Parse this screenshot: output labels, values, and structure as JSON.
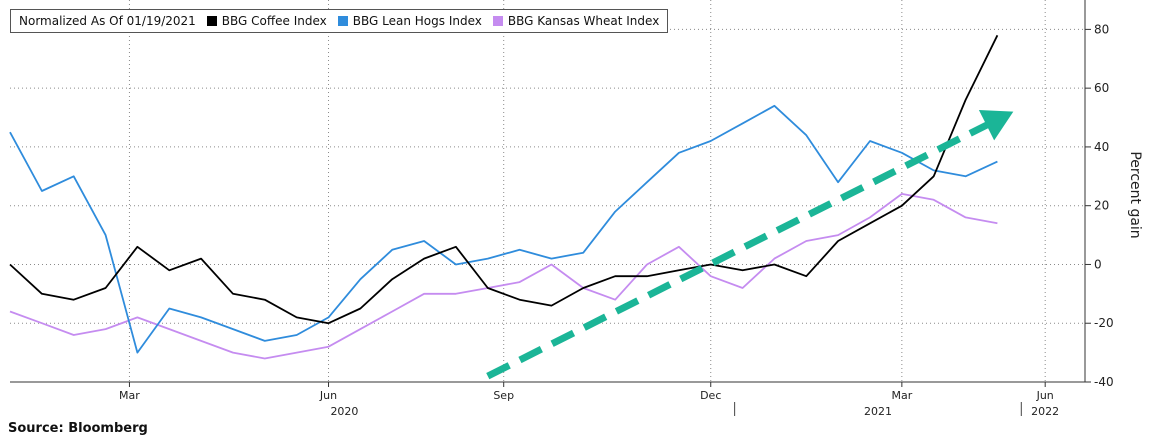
{
  "chart_data": {
    "type": "line",
    "legend": {
      "title": "Normalized As Of 01/19/2021",
      "placement": "top-left"
    },
    "series": [
      {
        "name": "BBG Coffee Index",
        "color": "#000000",
        "x": [
          0,
          4,
          8,
          12,
          16,
          20,
          24,
          28,
          32,
          36,
          40,
          44,
          48,
          52,
          56,
          60,
          64,
          68,
          72,
          76,
          80,
          84,
          88,
          92,
          96,
          100,
          104,
          108,
          112,
          116,
          120,
          124
        ],
        "y": [
          0,
          -10,
          -12,
          -8,
          6,
          -2,
          2,
          -10,
          -12,
          -18,
          -20,
          -15,
          -5,
          2,
          6,
          -8,
          -12,
          -14,
          -8,
          -4,
          -4,
          -2,
          0,
          -2,
          0,
          -4,
          8,
          14,
          20,
          30,
          56,
          78
        ]
      },
      {
        "name": "BBG Lean Hogs Index",
        "color": "#2f8cdc",
        "x": [
          0,
          4,
          8,
          12,
          16,
          20,
          24,
          28,
          32,
          36,
          40,
          44,
          48,
          52,
          56,
          60,
          64,
          68,
          72,
          76,
          80,
          84,
          88,
          92,
          96,
          100,
          104,
          108,
          112,
          116,
          120,
          124
        ],
        "y": [
          45,
          25,
          30,
          10,
          -30,
          -15,
          -18,
          -22,
          -26,
          -24,
          -18,
          -5,
          5,
          8,
          0,
          2,
          5,
          2,
          4,
          18,
          28,
          38,
          42,
          48,
          54,
          44,
          28,
          42,
          38,
          32,
          30,
          35
        ]
      },
      {
        "name": "BBG Kansas Wheat Index",
        "color": "#c58cf0",
        "x": [
          0,
          4,
          8,
          12,
          16,
          20,
          24,
          28,
          32,
          36,
          40,
          44,
          48,
          52,
          56,
          60,
          64,
          68,
          72,
          76,
          80,
          84,
          88,
          92,
          96,
          100,
          104,
          108,
          112,
          116,
          120,
          124
        ],
        "y": [
          -16,
          -20,
          -24,
          -22,
          -18,
          -22,
          -26,
          -30,
          -32,
          -30,
          -28,
          -22,
          -16,
          -10,
          -10,
          -8,
          -6,
          0,
          -8,
          -12,
          0,
          6,
          -4,
          -8,
          2,
          8,
          10,
          16,
          24,
          22,
          16,
          14
        ]
      }
    ],
    "annotations": [
      {
        "type": "dashed-arrow",
        "color": "#1bb597",
        "from": [
          60,
          -38
        ],
        "to": [
          126,
          52
        ]
      }
    ],
    "xaxis": {
      "range": [
        0,
        135
      ],
      "month_ticks": [
        {
          "label": "Mar",
          "x": 15
        },
        {
          "label": "Jun",
          "x": 40
        },
        {
          "label": "Sep",
          "x": 62
        },
        {
          "label": "Dec",
          "x": 88
        },
        {
          "label": "Mar",
          "x": 112
        },
        {
          "label": "Jun",
          "x": 130
        }
      ],
      "year_labels": [
        "2020",
        "2021",
        "2022"
      ]
    },
    "yaxis": {
      "label": "Percent gain",
      "range": [
        -40,
        90
      ],
      "ticks": [
        80,
        60,
        40,
        20,
        0,
        -20,
        -40
      ],
      "tick_labels": [
        "80",
        "60",
        "40",
        "20",
        "0",
        "-20",
        "-40"
      ]
    },
    "source": "Source: Bloomberg"
  }
}
